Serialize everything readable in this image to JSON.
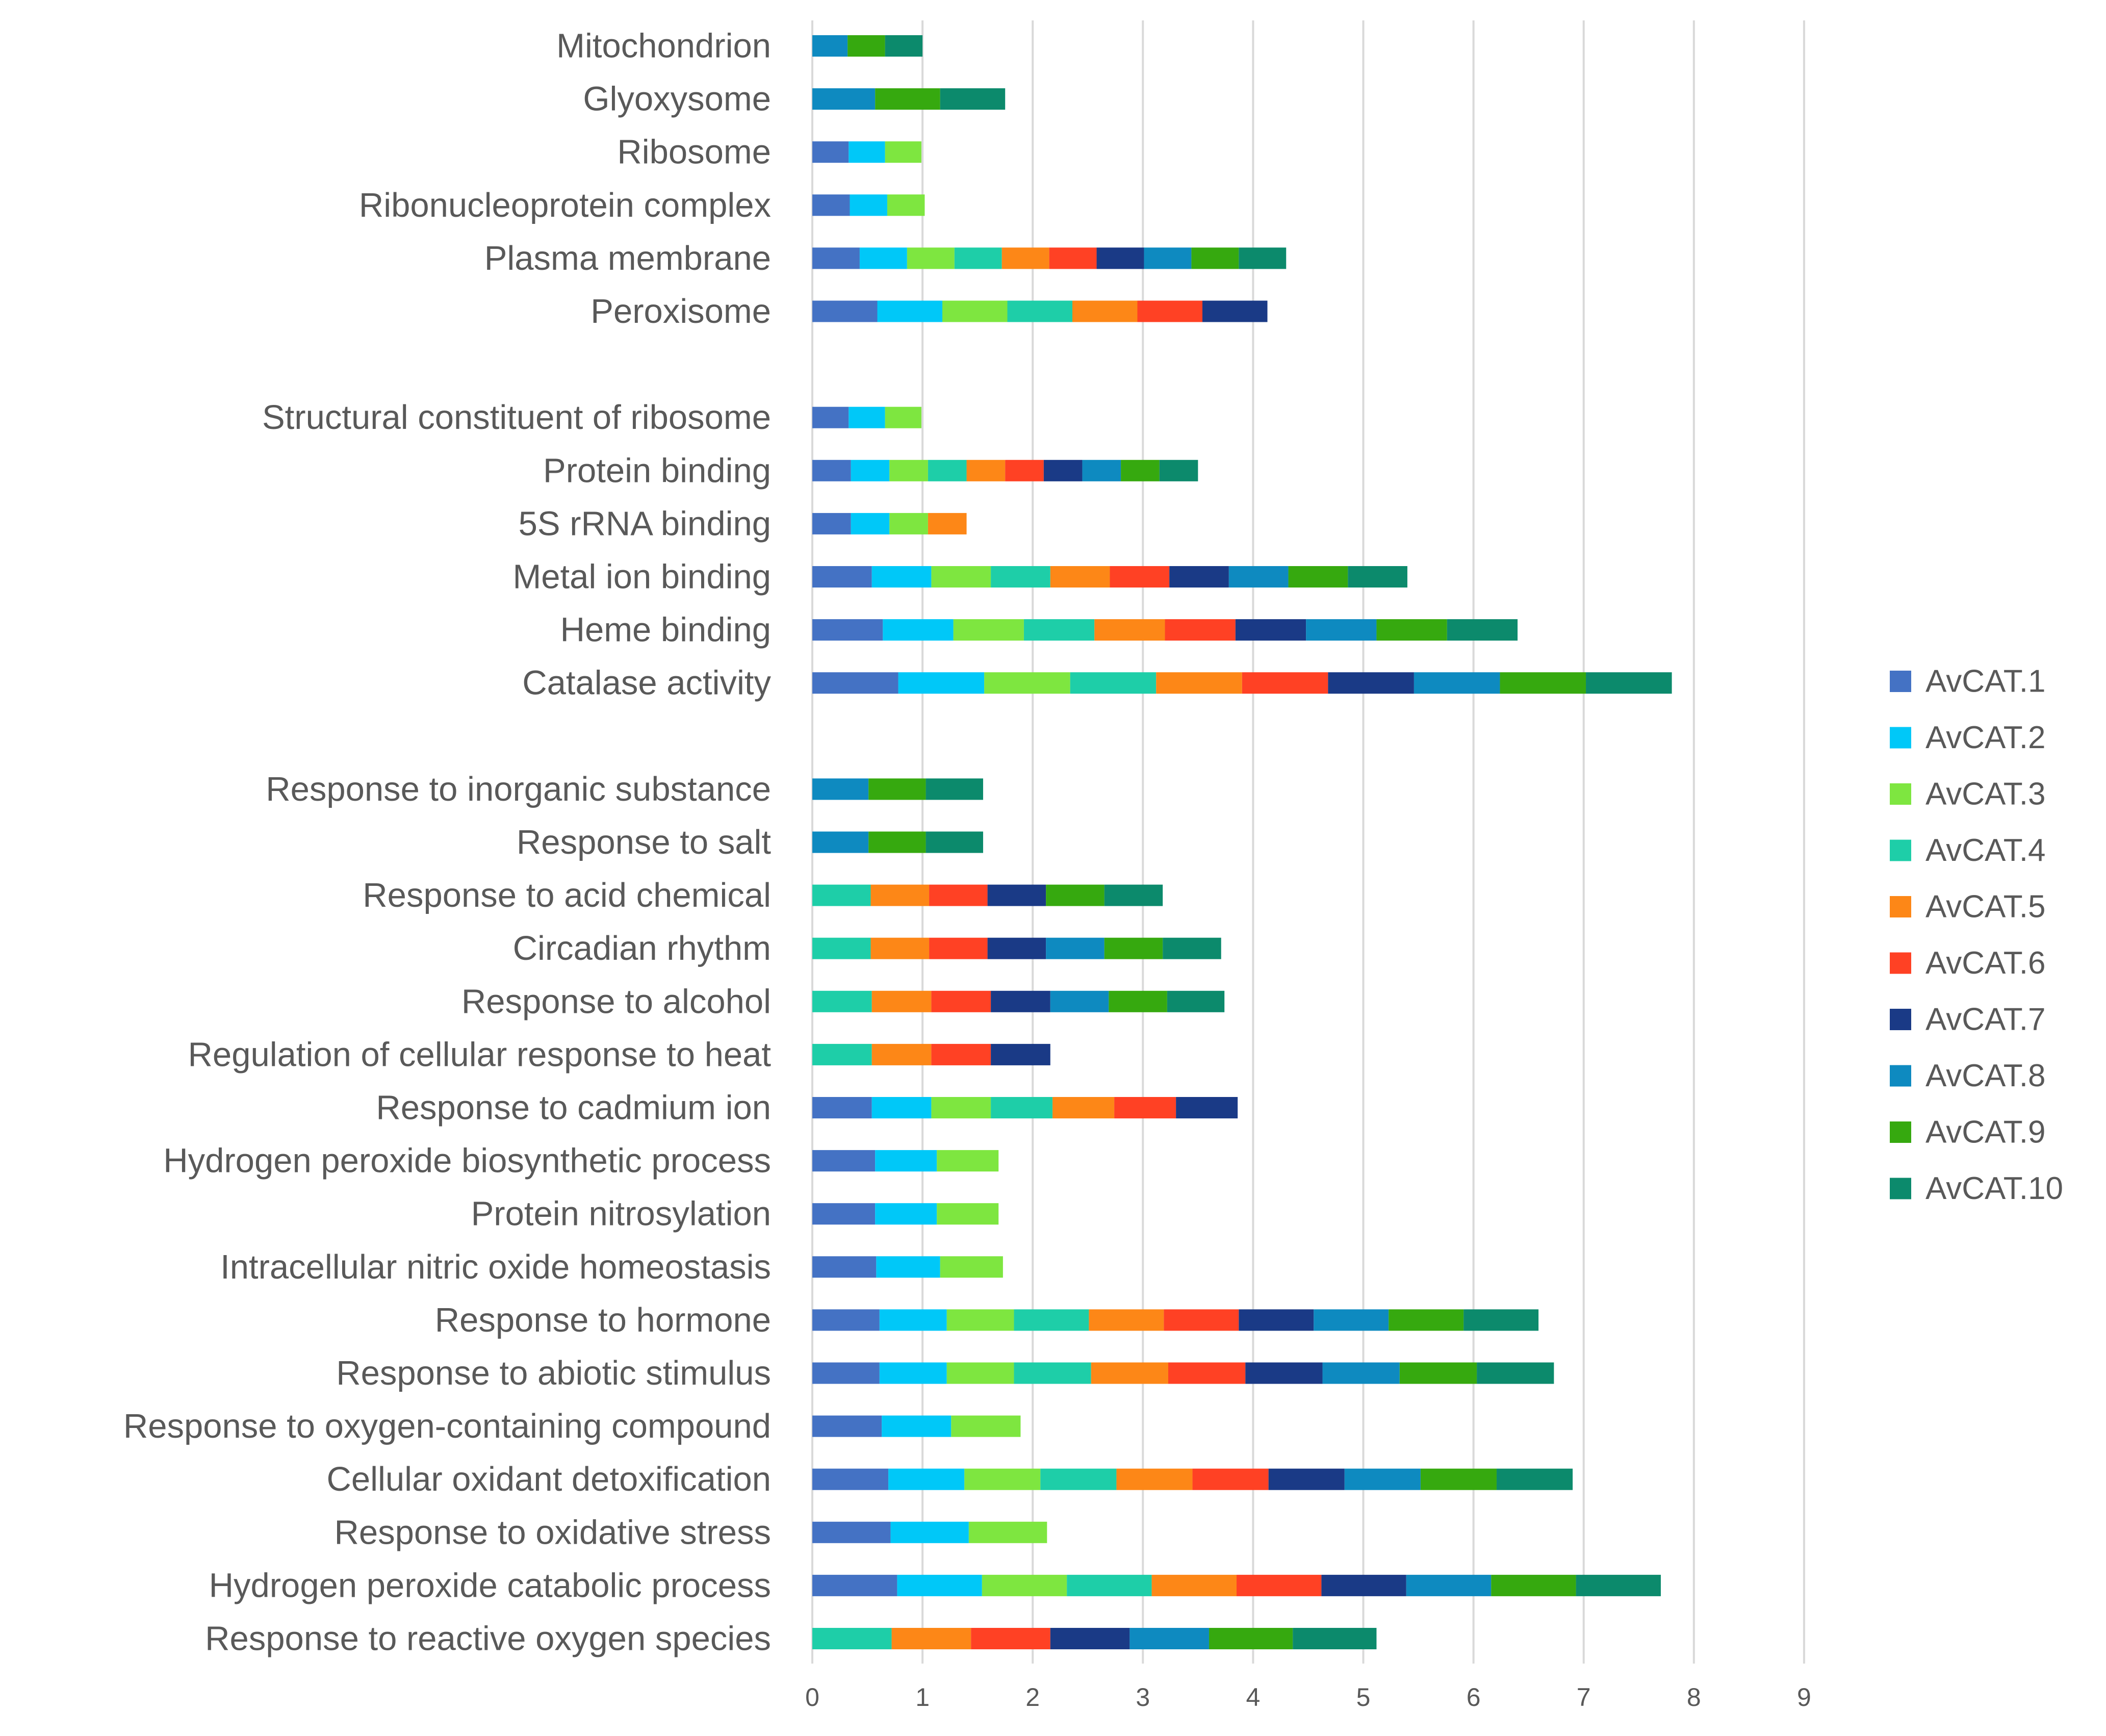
{
  "chart_data": {
    "type": "bar",
    "orientation": "horizontal",
    "stacked": true,
    "title": "",
    "xlabel": "",
    "ylabel": "",
    "xlim": [
      0,
      9
    ],
    "ticks": [
      "0",
      "1",
      "2",
      "3",
      "4",
      "5",
      "6",
      "7",
      "8",
      "9"
    ],
    "grid": true,
    "legend_position": "right",
    "categories": [
      "Mitochondrion",
      "Glyoxysome",
      "Ribosome",
      "Ribonucleoprotein complex",
      "Plasma membrane",
      "Peroxisome",
      "",
      "Structural constituent of ribosome",
      "Protein binding",
      "5S rRNA binding",
      "Metal ion binding",
      "Heme binding",
      "Catalase activity",
      "",
      "Response to inorganic substance",
      "Response to salt",
      "Response to acid chemical",
      "Circadian rhythm",
      "Response to alcohol",
      "Regulation of cellular response to heat",
      "Response to cadmium ion",
      "Hydrogen peroxide biosynthetic process",
      "Protein nitrosylation",
      "Intracellular nitric oxide homeostasis",
      "Response to hormone",
      "Response to abiotic stimulus",
      "Response to oxygen-containing compound",
      "Cellular oxidant detoxification",
      "Response to oxidative stress",
      "Hydrogen peroxide catabolic process",
      "Response to reactive oxygen species"
    ],
    "series": [
      {
        "name": "AvCAT.1",
        "color": "#4472c4",
        "values": [
          0,
          0,
          0.33,
          0.34,
          0.43,
          0.59,
          null,
          0.33,
          0.35,
          0.35,
          0.54,
          0.64,
          0.78,
          null,
          0,
          0,
          0,
          0,
          0,
          0,
          0.54,
          0.57,
          0.57,
          0.58,
          0.61,
          0.61,
          0.63,
          0.69,
          0.71,
          0.77,
          0
        ]
      },
      {
        "name": "AvCAT.2",
        "color": "#00c8f8",
        "values": [
          0,
          0,
          0.33,
          0.34,
          0.43,
          0.59,
          null,
          0.33,
          0.35,
          0.35,
          0.54,
          0.64,
          0.78,
          null,
          0,
          0,
          0,
          0,
          0,
          0,
          0.54,
          0.56,
          0.56,
          0.58,
          0.61,
          0.61,
          0.63,
          0.69,
          0.71,
          0.77,
          0
        ]
      },
      {
        "name": "AvCAT.3",
        "color": "#7ee640",
        "values": [
          0,
          0,
          0.33,
          0.34,
          0.43,
          0.59,
          null,
          0.33,
          0.35,
          0.35,
          0.54,
          0.64,
          0.78,
          null,
          0,
          0,
          0,
          0,
          0,
          0,
          0.54,
          0.56,
          0.56,
          0.57,
          0.61,
          0.61,
          0.63,
          0.69,
          0.71,
          0.77,
          0
        ]
      },
      {
        "name": "AvCAT.4",
        "color": "#1ecea8",
        "values": [
          0,
          0,
          0,
          0,
          0.43,
          0.59,
          null,
          0,
          0.35,
          0,
          0.54,
          0.64,
          0.78,
          null,
          0,
          0,
          0.53,
          0.53,
          0.54,
          0.54,
          0.56,
          0,
          0,
          0,
          0.68,
          0.7,
          0,
          0.69,
          0,
          0.77,
          0.72
        ]
      },
      {
        "name": "AvCAT.5",
        "color": "#fd8717",
        "values": [
          0,
          0,
          0,
          0,
          0.43,
          0.59,
          null,
          0,
          0.35,
          0.35,
          0.54,
          0.64,
          0.78,
          null,
          0,
          0,
          0.53,
          0.53,
          0.54,
          0.54,
          0.56,
          0,
          0,
          0,
          0.68,
          0.7,
          0,
          0.69,
          0,
          0.77,
          0.72
        ]
      },
      {
        "name": "AvCAT.6",
        "color": "#ff4124",
        "values": [
          0,
          0,
          0,
          0,
          0.43,
          0.59,
          null,
          0,
          0.35,
          0,
          0.54,
          0.64,
          0.78,
          null,
          0,
          0,
          0.53,
          0.53,
          0.54,
          0.54,
          0.56,
          0,
          0,
          0,
          0.68,
          0.7,
          0,
          0.69,
          0,
          0.77,
          0.72
        ]
      },
      {
        "name": "AvCAT.7",
        "color": "#1a3a86",
        "values": [
          0,
          0,
          0,
          0,
          0.43,
          0.59,
          null,
          0,
          0.35,
          0,
          0.54,
          0.64,
          0.78,
          null,
          0,
          0,
          0.53,
          0.53,
          0.54,
          0.54,
          0.56,
          0,
          0,
          0,
          0.68,
          0.7,
          0,
          0.69,
          0,
          0.77,
          0.72
        ]
      },
      {
        "name": "AvCAT.8",
        "color": "#0e8ac0",
        "values": [
          0.32,
          0.57,
          0,
          0,
          0.43,
          0,
          null,
          0,
          0.35,
          0,
          0.54,
          0.64,
          0.78,
          null,
          0.51,
          0.51,
          0,
          0.53,
          0.53,
          0,
          0,
          0,
          0,
          0,
          0.68,
          0.7,
          0,
          0.69,
          0,
          0.77,
          0.72
        ]
      },
      {
        "name": "AvCAT.9",
        "color": "#36a90f",
        "values": [
          0.34,
          0.59,
          0,
          0,
          0.43,
          0,
          null,
          0,
          0.35,
          0,
          0.54,
          0.64,
          0.78,
          null,
          0.52,
          0.52,
          0.53,
          0.53,
          0.53,
          0,
          0,
          0,
          0,
          0,
          0.68,
          0.7,
          0,
          0.69,
          0,
          0.77,
          0.76
        ]
      },
      {
        "name": "AvCAT.10",
        "color": "#0c8a6c",
        "values": [
          0.34,
          0.59,
          0,
          0,
          0.43,
          0,
          null,
          0,
          0.35,
          0,
          0.54,
          0.64,
          0.78,
          null,
          0.52,
          0.52,
          0.53,
          0.53,
          0.52,
          0,
          0,
          0,
          0,
          0,
          0.68,
          0.7,
          0,
          0.69,
          0,
          0.77,
          0.76
        ]
      }
    ]
  }
}
